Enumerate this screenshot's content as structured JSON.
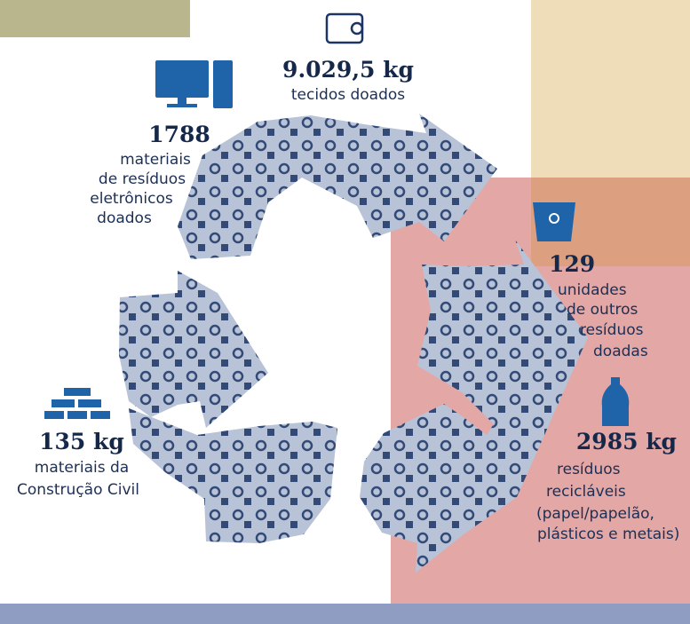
{
  "items": [
    {
      "amount": "9.029,5 kg",
      "lines": [
        "tecidos doados"
      ]
    },
    {
      "amount": "1788",
      "lines": [
        "materiais",
        "de resíduos",
        "eletrônicos",
        "doados"
      ]
    },
    {
      "amount": "129",
      "lines": [
        "unidades",
        "de outros",
        "resíduos",
        "doadas"
      ]
    },
    {
      "amount": "2985 kg",
      "lines": [
        "resíduos",
        "recicláveis",
        "(papel/papelão,",
        "plásticos e metais)"
      ]
    },
    {
      "amount": "135 kg",
      "lines": [
        "materiais da",
        "Construção Civil"
      ]
    }
  ]
}
